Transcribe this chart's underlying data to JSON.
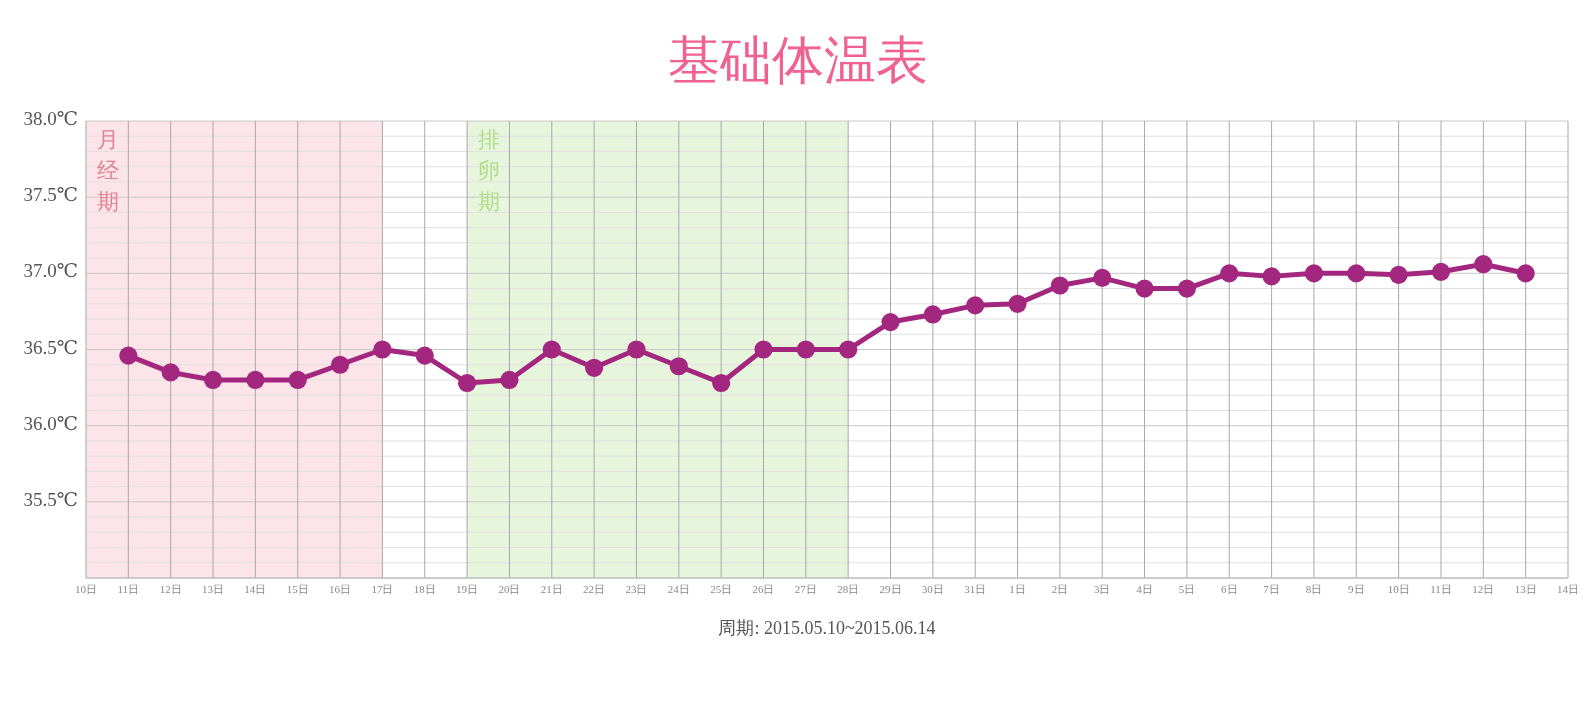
{
  "chart_data": {
    "type": "line",
    "title": "基础体温表",
    "annotations": [
      "周期: 2015.05.10~2015.06.14"
    ],
    "x": [
      "2015-05-11",
      "2015-05-12",
      "2015-05-13",
      "2015-05-14",
      "2015-05-15",
      "2015-05-16",
      "2015-05-17",
      "2015-05-18",
      "2015-05-19",
      "2015-05-20",
      "2015-05-21",
      "2015-05-22",
      "2015-05-23",
      "2015-05-24",
      "2015-05-25",
      "2015-05-26",
      "2015-05-27",
      "2015-05-28",
      "2015-05-29",
      "2015-05-30",
      "2015-05-31",
      "2015-06-01",
      "2015-06-02",
      "2015-06-03",
      "2015-06-04",
      "2015-06-05",
      "2015-06-06",
      "2015-06-07",
      "2015-06-08",
      "2015-06-09",
      "2015-06-10",
      "2015-06-11",
      "2015-06-12",
      "2015-06-13"
    ],
    "series": [
      {
        "color": "#a3277e",
        "values": [
          36.46,
          36.35,
          36.3,
          36.3,
          36.3,
          36.4,
          36.5,
          36.46,
          36.28,
          36.3,
          36.5,
          36.38,
          36.5,
          36.39,
          36.28,
          36.5,
          36.5,
          36.5,
          36.68,
          36.73,
          36.79,
          36.8,
          36.92,
          36.97,
          36.9,
          36.9,
          37.0,
          36.98,
          37.0,
          37.0,
          36.99,
          37.01,
          37.06,
          37.0
        ]
      }
    ],
    "xlim": [
      "2015-05-10",
      "2015-06-14"
    ],
    "xticks": [
      {
        "value": "2015-05-10",
        "label": "10日"
      },
      {
        "value": "2015-05-11",
        "label": "11日"
      },
      {
        "value": "2015-05-12",
        "label": "12日"
      },
      {
        "value": "2015-05-13",
        "label": "13日"
      },
      {
        "value": "2015-05-14",
        "label": "14日"
      },
      {
        "value": "2015-05-15",
        "label": "15日"
      },
      {
        "value": "2015-05-16",
        "label": "16日"
      },
      {
        "value": "2015-05-17",
        "label": "17日"
      },
      {
        "value": "2015-05-18",
        "label": "18日"
      },
      {
        "value": "2015-05-19",
        "label": "19日"
      },
      {
        "value": "2015-05-20",
        "label": "20日"
      },
      {
        "value": "2015-05-21",
        "label": "21日"
      },
      {
        "value": "2015-05-22",
        "label": "22日"
      },
      {
        "value": "2015-05-23",
        "label": "23日"
      },
      {
        "value": "2015-05-24",
        "label": "24日"
      },
      {
        "value": "2015-05-25",
        "label": "25日"
      },
      {
        "value": "2015-05-26",
        "label": "26日"
      },
      {
        "value": "2015-05-27",
        "label": "27日"
      },
      {
        "value": "2015-05-28",
        "label": "28日"
      },
      {
        "value": "2015-05-29",
        "label": "29日"
      },
      {
        "value": "2015-05-30",
        "label": "30日"
      },
      {
        "value": "2015-05-31",
        "label": "31日"
      },
      {
        "value": "2015-06-01",
        "label": "1日"
      },
      {
        "value": "2015-06-02",
        "label": "2日"
      },
      {
        "value": "2015-06-03",
        "label": "3日"
      },
      {
        "value": "2015-06-04",
        "label": "4日"
      },
      {
        "value": "2015-06-05",
        "label": "5日"
      },
      {
        "value": "2015-06-06",
        "label": "6日"
      },
      {
        "value": "2015-06-07",
        "label": "7日"
      },
      {
        "value": "2015-06-08",
        "label": "8日"
      },
      {
        "value": "2015-06-09",
        "label": "9日"
      },
      {
        "value": "2015-06-10",
        "label": "10日"
      },
      {
        "value": "2015-06-11",
        "label": "11日"
      },
      {
        "value": "2015-06-12",
        "label": "12日"
      },
      {
        "value": "2015-06-13",
        "label": "13日"
      },
      {
        "value": "2015-06-14",
        "label": "14日"
      }
    ],
    "ylim": [
      35,
      38
    ],
    "yticks": [
      {
        "value": 35,
        "label": null
      },
      {
        "value": 35.1,
        "label": null
      },
      {
        "value": 35.2,
        "label": null
      },
      {
        "value": 35.3,
        "label": null
      },
      {
        "value": 35.4,
        "label": null
      },
      {
        "value": 35.5,
        "label": "35.5℃"
      },
      {
        "value": 35.6,
        "label": null
      },
      {
        "value": 35.7,
        "label": null
      },
      {
        "value": 35.8,
        "label": null
      },
      {
        "value": 35.9,
        "label": null
      },
      {
        "value": 36,
        "label": "36.0℃"
      },
      {
        "value": 36.1,
        "label": null
      },
      {
        "value": 36.2,
        "label": null
      },
      {
        "value": 36.3,
        "label": null
      },
      {
        "value": 36.4,
        "label": null
      },
      {
        "value": 36.5,
        "label": "36.5℃"
      },
      {
        "value": 36.6,
        "label": null
      },
      {
        "value": 36.7,
        "label": null
      },
      {
        "value": 36.8,
        "label": null
      },
      {
        "value": 36.9,
        "label": null
      },
      {
        "value": 37,
        "label": "37.0℃"
      },
      {
        "value": 37.1,
        "label": null
      },
      {
        "value": 37.2,
        "label": null
      },
      {
        "value": 37.3,
        "label": null
      },
      {
        "value": 37.4,
        "label": null
      },
      {
        "value": 37.5,
        "label": "37.5℃"
      },
      {
        "value": 37.6,
        "label": null
      },
      {
        "value": 37.7,
        "label": null
      },
      {
        "value": 37.8,
        "label": null
      },
      {
        "value": 37.9,
        "label": null
      },
      {
        "value": 38,
        "label": "38.0℃"
      }
    ],
    "bands": [
      {
        "axis": "x",
        "from": "2015-05-10",
        "to": "2015-05-17",
        "label": "月经期",
        "color": "#fce4e8"
      },
      {
        "axis": "x",
        "from": "2015-05-19",
        "to": "2015-05-28",
        "label": "排卵期",
        "color": "#e8f5dd"
      }
    ],
    "grid": true,
    "marker": "circle",
    "line_style": "solid"
  }
}
